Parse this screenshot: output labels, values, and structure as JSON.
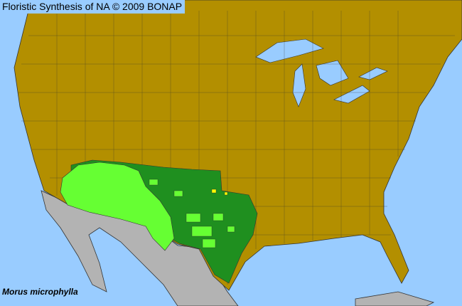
{
  "header": {
    "title": "Floristic Synthesis of NA © 2009 BONAP"
  },
  "map": {
    "species": "Morus microphylla",
    "colors": {
      "water": "#99ccff",
      "absent": "#b38f00",
      "outside_region": "#b3b3b3",
      "present_native": "#1f8f1f",
      "present_not_rare": "#66ff33",
      "rare": "#ffff00",
      "boundary": "#333333"
    }
  }
}
